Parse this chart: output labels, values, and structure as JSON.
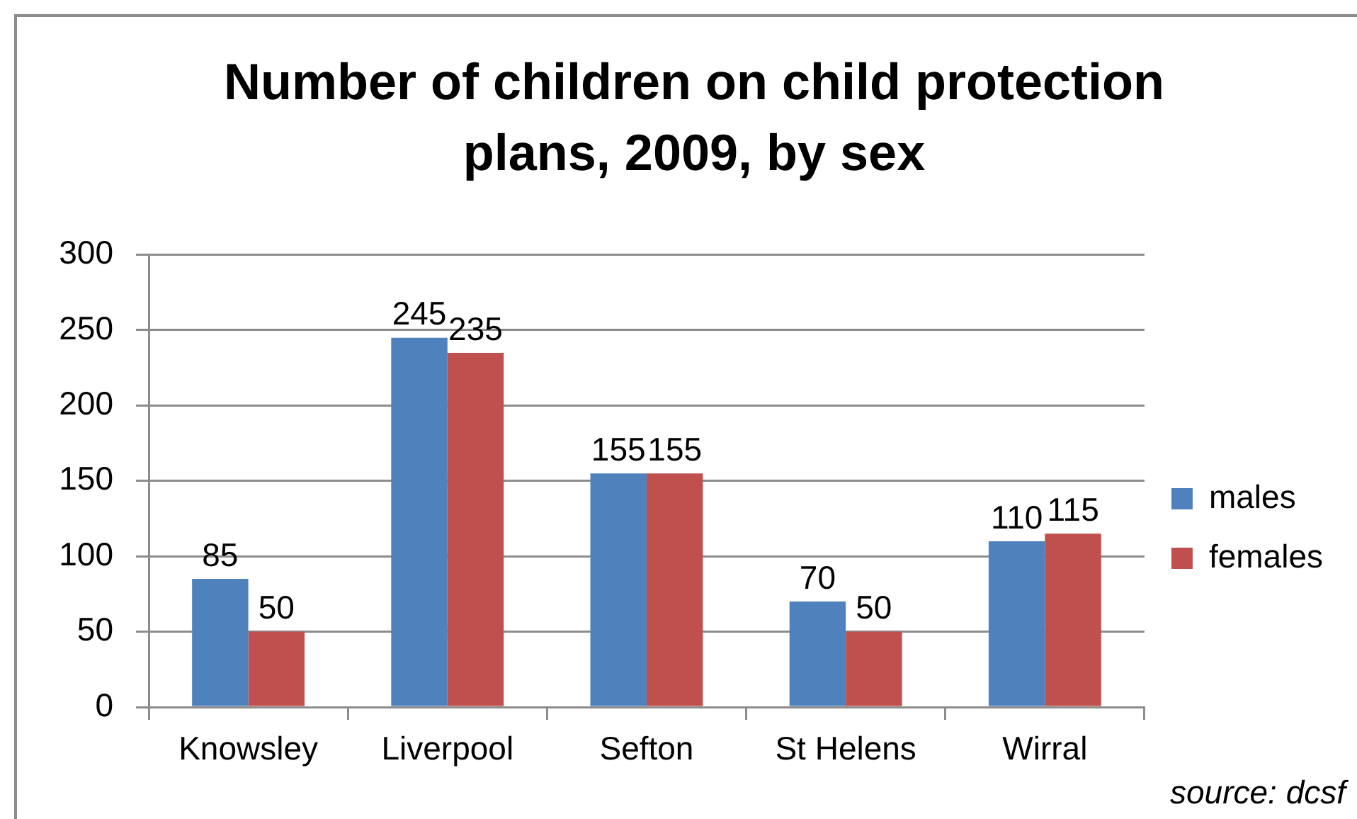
{
  "chart_data": {
    "type": "bar",
    "title": "Number of children on child protection plans, 2009, by sex",
    "categories": [
      "Knowsley",
      "Liverpool",
      "Sefton",
      "St Helens",
      "Wirral"
    ],
    "series": [
      {
        "name": "males",
        "color": "#4f81bd",
        "values": [
          85,
          245,
          155,
          70,
          110
        ]
      },
      {
        "name": "females",
        "color": "#c0504d",
        "values": [
          50,
          235,
          155,
          50,
          115
        ]
      }
    ],
    "ylim": [
      0,
      300
    ],
    "yticks": [
      0,
      50,
      100,
      150,
      200,
      250,
      300
    ],
    "grid": "y",
    "legend": "right",
    "data_labels": true,
    "annotations": [
      "source: dcsf"
    ]
  }
}
